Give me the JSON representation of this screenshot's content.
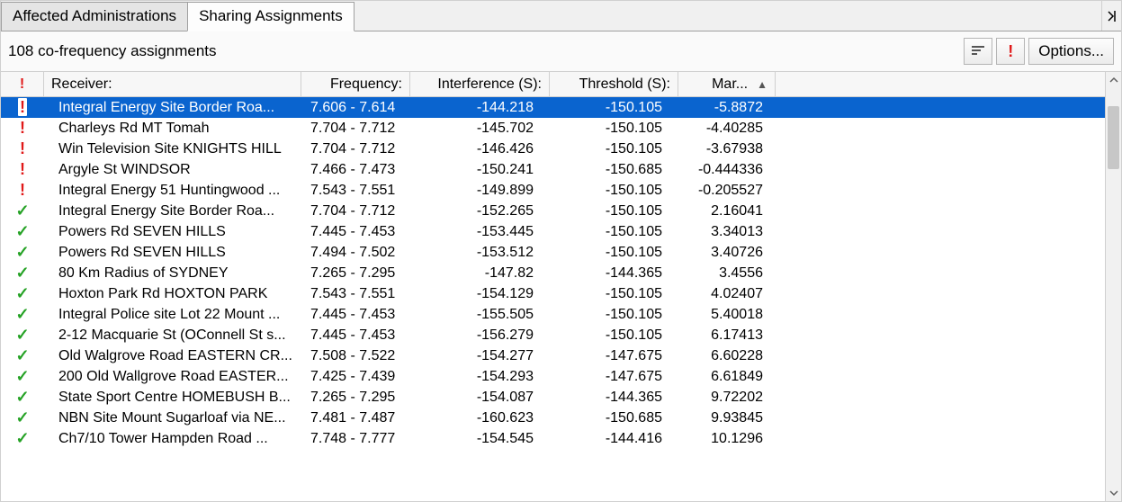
{
  "tabs": {
    "affected": "Affected Administrations",
    "sharing": "Sharing Assignments"
  },
  "toolbar": {
    "count_label": "108 co-frequency assignments",
    "options_label": "Options...",
    "warn_glyph": "!"
  },
  "columns": {
    "status": "!",
    "receiver": "Receiver:",
    "frequency": "Frequency:",
    "interference": "Interference (S):",
    "threshold": "Threshold (S):",
    "margin": "Mar...",
    "sort_caret": "▲"
  },
  "rows": [
    {
      "status": "warn",
      "selected": true,
      "receiver": "Integral Energy Site  Border Roa...",
      "frequency": "7.606 - 7.614",
      "interference": "-144.218",
      "threshold": "-150.105",
      "margin": "-5.8872"
    },
    {
      "status": "warn",
      "receiver": "Charleys Rd MT Tomah",
      "frequency": "7.704 - 7.712",
      "interference": "-145.702",
      "threshold": "-150.105",
      "margin": "-4.40285"
    },
    {
      "status": "warn",
      "receiver": "Win Television Site  KNIGHTS HILL",
      "frequency": "7.704 - 7.712",
      "interference": "-146.426",
      "threshold": "-150.105",
      "margin": "-3.67938"
    },
    {
      "status": "warn",
      "receiver": "Argyle St WINDSOR",
      "frequency": "7.466 - 7.473",
      "interference": "-150.241",
      "threshold": "-150.685",
      "margin": "-0.444336"
    },
    {
      "status": "warn",
      "receiver": "Integral Energy 51 Huntingwood ...",
      "frequency": "7.543 - 7.551",
      "interference": "-149.899",
      "threshold": "-150.105",
      "margin": "-0.205527"
    },
    {
      "status": "ok",
      "receiver": "Integral Energy Site  Border Roa...",
      "frequency": "7.704 - 7.712",
      "interference": "-152.265",
      "threshold": "-150.105",
      "margin": "2.16041"
    },
    {
      "status": "ok",
      "receiver": "Powers Rd SEVEN HILLS",
      "frequency": "7.445 - 7.453",
      "interference": "-153.445",
      "threshold": "-150.105",
      "margin": "3.34013"
    },
    {
      "status": "ok",
      "receiver": "Powers Rd SEVEN HILLS",
      "frequency": "7.494 - 7.502",
      "interference": "-153.512",
      "threshold": "-150.105",
      "margin": "3.40726"
    },
    {
      "status": "ok",
      "receiver": "80 Km Radius of SYDNEY",
      "frequency": "7.265 - 7.295",
      "interference": "-147.82",
      "threshold": "-144.365",
      "margin": "3.4556"
    },
    {
      "status": "ok",
      "receiver": "Hoxton Park Rd HOXTON PARK",
      "frequency": "7.543 - 7.551",
      "interference": "-154.129",
      "threshold": "-150.105",
      "margin": "4.02407"
    },
    {
      "status": "ok",
      "receiver": "Integral Police site Lot 22 Mount ...",
      "frequency": "7.445 - 7.453",
      "interference": "-155.505",
      "threshold": "-150.105",
      "margin": "5.40018"
    },
    {
      "status": "ok",
      "receiver": "2-12 Macquarie St (OConnell St s...",
      "frequency": "7.445 - 7.453",
      "interference": "-156.279",
      "threshold": "-150.105",
      "margin": "6.17413"
    },
    {
      "status": "ok",
      "receiver": "Old Walgrove Road EASTERN CR...",
      "frequency": "7.508 - 7.522",
      "interference": "-154.277",
      "threshold": "-147.675",
      "margin": "6.60228"
    },
    {
      "status": "ok",
      "receiver": "200 Old Wallgrove Road EASTER...",
      "frequency": "7.425 - 7.439",
      "interference": "-154.293",
      "threshold": "-147.675",
      "margin": "6.61849"
    },
    {
      "status": "ok",
      "receiver": "State Sport Centre HOMEBUSH B...",
      "frequency": "7.265 - 7.295",
      "interference": "-154.087",
      "threshold": "-144.365",
      "margin": "9.72202"
    },
    {
      "status": "ok",
      "receiver": "NBN Site Mount Sugarloaf via NE...",
      "frequency": "7.481 - 7.487",
      "interference": "-160.623",
      "threshold": "-150.685",
      "margin": "9.93845"
    },
    {
      "status": "ok",
      "receiver": "Ch7/10 Tower  Hampden Road  ...",
      "frequency": "7.748 - 7.777",
      "interference": "-154.545",
      "threshold": "-144.416",
      "margin": "10.1296"
    }
  ],
  "scroll": {
    "up": "⌃",
    "down": "⌄"
  }
}
